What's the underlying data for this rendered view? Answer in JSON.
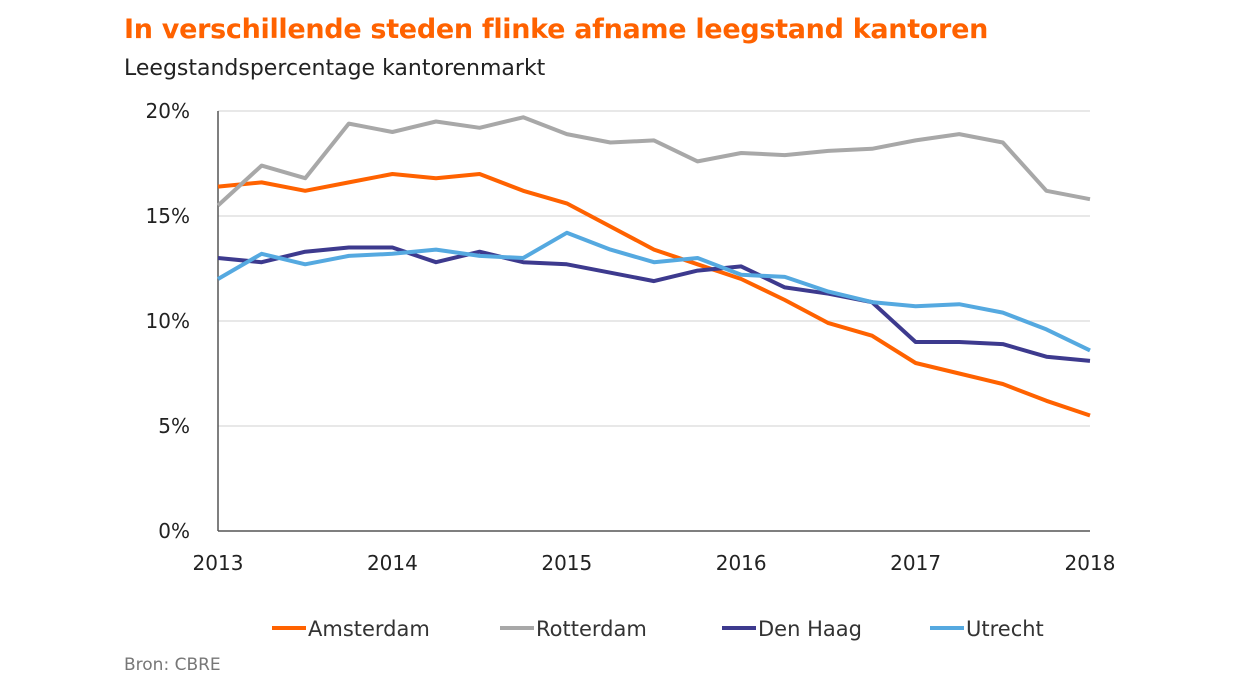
{
  "title": "In verschillende steden flinke afname leegstand kantoren",
  "subtitle": "Leegstandspercentage  kantorenmarkt",
  "source": "Bron: CBRE",
  "chart_data": {
    "type": "line",
    "x": [
      2013.0,
      2013.25,
      2013.5,
      2013.75,
      2014.0,
      2014.25,
      2014.5,
      2014.75,
      2015.0,
      2015.25,
      2015.5,
      2015.75,
      2016.0,
      2016.25,
      2016.5,
      2016.75,
      2017.0,
      2017.25,
      2017.5,
      2017.75,
      2018.0
    ],
    "xticks": [
      2013,
      2014,
      2015,
      2016,
      2017,
      2018
    ],
    "xtick_labels": [
      "2013",
      "2014",
      "2015",
      "2016",
      "2017",
      "2018"
    ],
    "yticks": [
      0,
      5,
      10,
      15,
      20
    ],
    "ytick_labels": [
      "0%",
      "5%",
      "10%",
      "15%",
      "20%"
    ],
    "xlim": [
      2013,
      2018
    ],
    "ylim": [
      0,
      20
    ],
    "grid": "horizontal",
    "legend": "bottom",
    "series": [
      {
        "name": "Amsterdam",
        "color": "#FF6200",
        "values": [
          16.4,
          16.6,
          16.2,
          16.6,
          17.0,
          16.8,
          17.0,
          16.2,
          15.6,
          14.5,
          13.4,
          12.7,
          12.0,
          11.0,
          9.9,
          9.3,
          8.0,
          7.5,
          7.0,
          6.2,
          5.5
        ]
      },
      {
        "name": "Rotterdam",
        "color": "#A8A8A8",
        "values": [
          15.5,
          17.4,
          16.8,
          19.4,
          19.0,
          19.5,
          19.2,
          19.7,
          18.9,
          18.5,
          18.6,
          17.6,
          18.0,
          17.9,
          18.1,
          18.2,
          18.6,
          18.9,
          18.5,
          16.2,
          15.8
        ]
      },
      {
        "name": "Den Haag",
        "color": "#3D3A8E",
        "values": [
          13.0,
          12.8,
          13.3,
          13.5,
          13.5,
          12.8,
          13.3,
          12.8,
          12.7,
          12.3,
          11.9,
          12.4,
          12.6,
          11.6,
          11.3,
          10.9,
          9.0,
          9.0,
          8.9,
          8.3,
          8.1
        ]
      },
      {
        "name": "Utrecht",
        "color": "#55A9E0",
        "values": [
          12.0,
          13.2,
          12.7,
          13.1,
          13.2,
          13.4,
          13.1,
          13.0,
          14.2,
          13.4,
          12.8,
          13.0,
          12.2,
          12.1,
          11.4,
          10.9,
          10.7,
          10.8,
          10.4,
          9.6,
          8.6
        ]
      }
    ]
  }
}
